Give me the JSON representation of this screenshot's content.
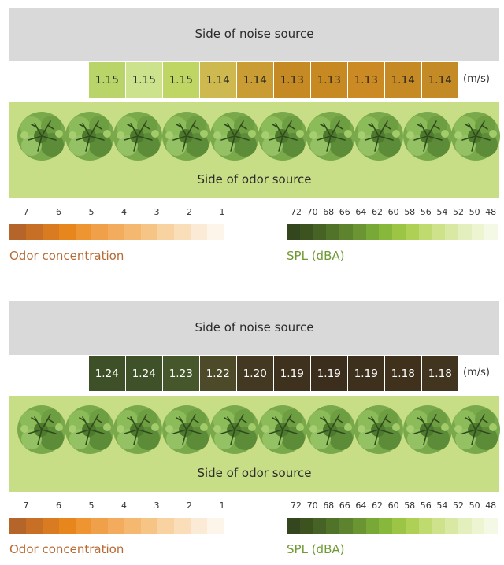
{
  "labels": {
    "noise_side": "Side of noise source",
    "odor_side": "Side of odor source",
    "unit": "(m/s)"
  },
  "panels": [
    {
      "speeds": [
        "1.15",
        "1.15",
        "1.15",
        "1.14",
        "1.14",
        "1.13",
        "1.13",
        "1.13",
        "1.14",
        "1.14"
      ],
      "cell_colors": [
        "#b9d56a",
        "#cde28d",
        "#bfd665",
        "#cdb94f",
        "#c99c34",
        "#c68a24",
        "#c78922",
        "#cc8a24",
        "#c58a23",
        "#c48a25"
      ],
      "text_colors": [
        "#222222",
        "#222222",
        "#222222",
        "#222222",
        "#222222",
        "#222222",
        "#222222",
        "#222222",
        "#222222",
        "#222222"
      ]
    },
    {
      "speeds": [
        "1.24",
        "1.24",
        "1.23",
        "1.22",
        "1.20",
        "1.19",
        "1.19",
        "1.19",
        "1.18",
        "1.18"
      ],
      "cell_colors": [
        "#3e5027",
        "#3f5128",
        "#46582b",
        "#4d4a2a",
        "#433821",
        "#3e311d",
        "#3b2e1c",
        "#3d301d",
        "#3f311c",
        "#423520"
      ],
      "text_colors": [
        "#ffffff",
        "#ffffff",
        "#ffffff",
        "#ffffff",
        "#ffffff",
        "#ffffff",
        "#ffffff",
        "#ffffff",
        "#ffffff",
        "#ffffff"
      ]
    }
  ],
  "odor_legend": {
    "title": "Odor concentration",
    "title_color": "#b86a33",
    "ticks": [
      "7",
      "6",
      "5",
      "4",
      "3",
      "2",
      "1"
    ],
    "colors": [
      "#b5652a",
      "#c66f25",
      "#d97b20",
      "#e8861e",
      "#ee9430",
      "#f1a04a",
      "#f3ac5e",
      "#f5b870",
      "#f6c586",
      "#f8d2a0",
      "#fadeba",
      "#fbead6",
      "#fdf4ea"
    ]
  },
  "spl_legend": {
    "title": "SPL (dBA)",
    "title_color": "#6f9a32",
    "ticks": [
      "72",
      "70",
      "68",
      "66",
      "64",
      "62",
      "60",
      "58",
      "56",
      "54",
      "52",
      "50",
      "48"
    ],
    "colors": [
      "#33461e",
      "#3c5320",
      "#466224",
      "#517229",
      "#5d832e",
      "#6a9532",
      "#78a835",
      "#88b83b",
      "#9cc545",
      "#aed055",
      "#bfda6e",
      "#cde28a",
      "#d9e9a4",
      "#e3efbc",
      "#ecf4d2",
      "#f4f9e5"
    ]
  }
}
